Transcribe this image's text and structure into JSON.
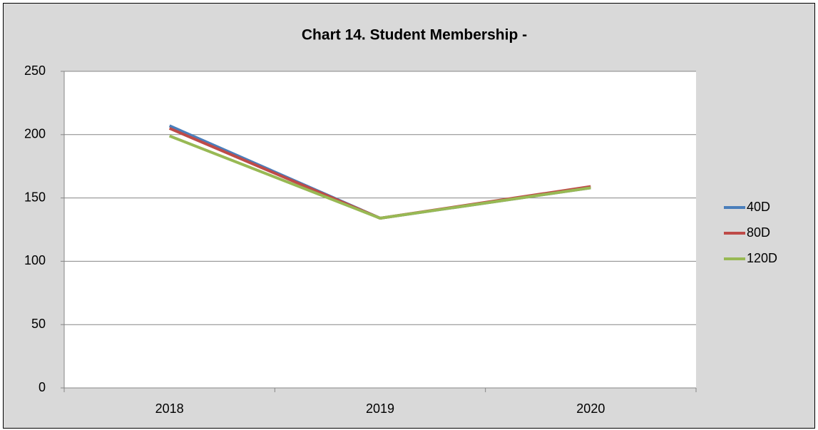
{
  "chart_data": {
    "type": "line",
    "title": "Chart 14. Student Membership -",
    "categories": [
      "2018",
      "2019",
      "2020"
    ],
    "series": [
      {
        "name": "40D",
        "color": "#4a7ebb",
        "values": [
          207,
          134,
          158
        ]
      },
      {
        "name": "80D",
        "color": "#be4b48",
        "values": [
          205,
          134,
          159
        ]
      },
      {
        "name": "120D",
        "color": "#98b954",
        "values": [
          199,
          134,
          158
        ]
      }
    ],
    "ylim": [
      0,
      250
    ],
    "yticks": [
      0,
      50,
      100,
      150,
      200,
      250
    ],
    "grid": true,
    "legend": "right"
  }
}
